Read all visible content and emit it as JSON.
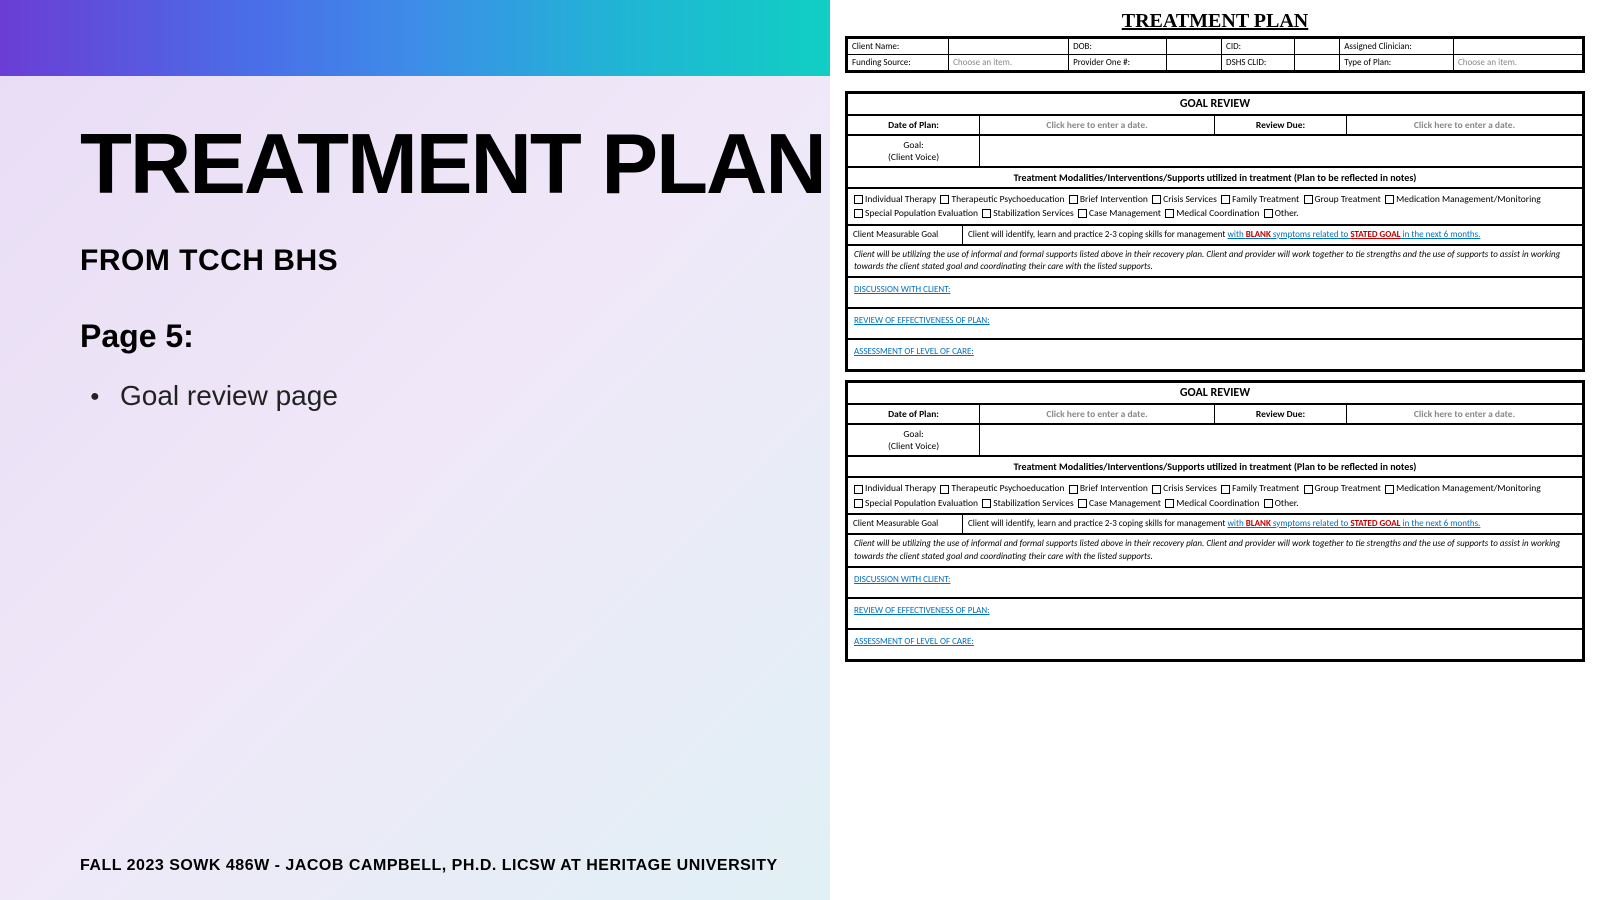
{
  "left": {
    "title": "TREATMENT PLAN",
    "subtitle": "FROM TCCH BHS",
    "page_label": "Page 5:",
    "bullet": "Goal review page",
    "footer": "FALL 2023 SOWK 486W - JACOB CAMPBELL, PH.D. LICSW AT HERITAGE UNIVERSITY"
  },
  "colors": {
    "banner_gradient_start": "#6b3dd4",
    "banner_gradient_end": "#10cfc4",
    "left_bg": "#e8dcf5",
    "blue_link": "#0070c0",
    "red_emphasis": "#c00000",
    "placeholder": "#888888"
  },
  "doc": {
    "title": "TREATMENT PLAN",
    "header_fields": {
      "client_name": "Client Name:",
      "dob": "DOB:",
      "cid": "CID:",
      "assigned": "Assigned Clinician:",
      "funding": "Funding Source:",
      "funding_ph": "Choose an item.",
      "provider": "Provider One #:",
      "dshs": "DSHS CLID:",
      "type": "Type of Plan:",
      "type_ph": "Choose an item."
    },
    "goal_review": {
      "title": "GOAL REVIEW",
      "date_of_plan": "Date of Plan:",
      "date_ph": "Click here to enter a date.",
      "review_due": "Review Due:",
      "goal_label": "Goal:",
      "client_voice": "(Client Voice)",
      "modalities_head": "Treatment Modalities/Interventions/Supports utilized in treatment (Plan to be reflected in notes)",
      "modalities": [
        "Individual Therapy",
        "Therapeutic Psychoeducation",
        "Brief Intervention",
        "Crisis Services",
        "Family Treatment",
        "Group Treatment",
        "Medication Management/Monitoring",
        "Special Population Evaluation",
        "Stabilization Services",
        "Case Management",
        "Medical Coordination",
        "Other."
      ],
      "measurable_lbl": "Client Measurable Goal",
      "measurable_txt_pre": "Client will identify, learn and practice 2-3 coping skills for management ",
      "measurable_txt_blue1": "with ",
      "measurable_txt_red1": "BLANK",
      "measurable_txt_blue2": " symptoms related to ",
      "measurable_txt_red2": "STATED GOAL",
      "measurable_txt_blue3": " in the next 6 months.",
      "para": "Client will be utilizing the use of informal and formal supports listed above in their recovery plan.  Client and provider will work together to tie strengths and the use of supports to assist in working towards the client stated goal and coordinating their care with the listed supports.",
      "discussion": "DISCUSSION WITH CLIENT:",
      "review_eff": "REVIEW OF EFFECTIVENESS OF PLAN:",
      "assessment": "ASSESSMENT OF LEVEL OF CARE:"
    }
  }
}
